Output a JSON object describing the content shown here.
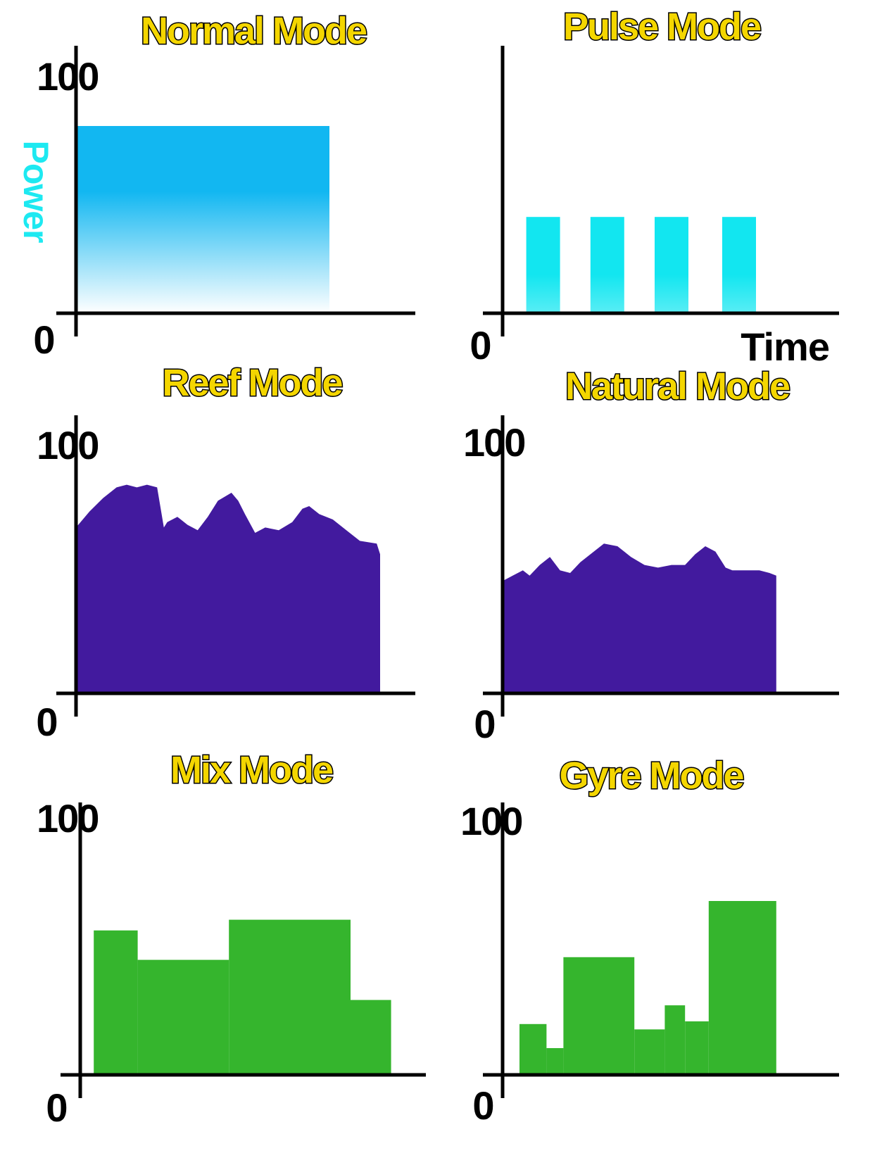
{
  "colors": {
    "title_fill": "#f4d600",
    "title_stroke": "#000000",
    "axis": "#000000",
    "normal": "#12b7f1",
    "pulse": "#12e6f0",
    "reef_natural": "#421a9e",
    "mix_gyre": "#35b52d",
    "ylabel": "#1de9f1"
  },
  "chart_data": [
    {
      "type": "area",
      "title": "Normal Mode",
      "ylabel": "Power",
      "xlabel": "",
      "ylim": [
        0,
        100
      ],
      "yticks": [
        "0",
        "100"
      ],
      "x": [
        0,
        75
      ],
      "y": [
        70,
        70
      ],
      "fill": "gradient-fade"
    },
    {
      "type": "bar",
      "title": "Pulse Mode",
      "ylabel": "",
      "xlabel": "Time",
      "ylim": [
        0,
        100
      ],
      "yticks": [
        "0"
      ],
      "bars": [
        {
          "x0": 7,
          "x1": 17,
          "value": 36
        },
        {
          "x0": 26,
          "x1": 36,
          "value": 36
        },
        {
          "x0": 45,
          "x1": 55,
          "value": 36
        },
        {
          "x0": 65,
          "x1": 75,
          "value": 36
        }
      ]
    },
    {
      "type": "area",
      "title": "Reef Mode",
      "ylabel": "",
      "xlabel": "",
      "ylim": [
        0,
        100
      ],
      "yticks": [
        "0",
        "100"
      ],
      "x": [
        0,
        4,
        8,
        12,
        15,
        18,
        21,
        24,
        26,
        27,
        30,
        33,
        36,
        39,
        42,
        46,
        48,
        50,
        53,
        56,
        60,
        64,
        67,
        69,
        72,
        76,
        80,
        84,
        89,
        90
      ],
      "y": [
        62,
        68,
        73,
        77,
        78,
        77,
        78,
        77,
        62,
        64,
        66,
        63,
        61,
        66,
        72,
        75,
        72,
        67,
        60,
        62,
        61,
        64,
        69,
        70,
        67,
        65,
        61,
        57,
        56,
        52
      ]
    },
    {
      "type": "area",
      "title": "Natural Mode",
      "ylabel": "",
      "xlabel": "",
      "ylim": [
        0,
        100
      ],
      "yticks": [
        "0",
        "100"
      ],
      "x": [
        0,
        3,
        6,
        8,
        11,
        14,
        17,
        20,
        23,
        26,
        30,
        34,
        38,
        42,
        46,
        50,
        54,
        57,
        60,
        63,
        66,
        68,
        70,
        72,
        74,
        76,
        79,
        81
      ],
      "y": [
        42,
        44,
        46,
        44,
        48,
        51,
        46,
        45,
        49,
        52,
        56,
        55,
        51,
        48,
        47,
        48,
        48,
        52,
        55,
        53,
        47,
        46,
        46,
        46,
        46,
        46,
        45,
        44
      ]
    },
    {
      "type": "bar",
      "title": "Mix Mode",
      "ylabel": "",
      "xlabel": "",
      "ylim": [
        0,
        100
      ],
      "yticks": [
        "0",
        "100"
      ],
      "bars": [
        {
          "x0": 4,
          "x1": 17,
          "value": 54
        },
        {
          "x0": 17,
          "x1": 44,
          "value": 43
        },
        {
          "x0": 44,
          "x1": 80,
          "value": 58
        },
        {
          "x0": 80,
          "x1": 92,
          "value": 28
        }
      ]
    },
    {
      "type": "bar",
      "title": "Gyre Mode",
      "ylabel": "",
      "xlabel": "",
      "ylim": [
        0,
        100
      ],
      "yticks": [
        "0",
        "100"
      ],
      "bars": [
        {
          "x0": 5,
          "x1": 13,
          "value": 19
        },
        {
          "x0": 13,
          "x1": 18,
          "value": 10
        },
        {
          "x0": 18,
          "x1": 39,
          "value": 44
        },
        {
          "x0": 39,
          "x1": 48,
          "value": 17
        },
        {
          "x0": 48,
          "x1": 54,
          "value": 26
        },
        {
          "x0": 54,
          "x1": 61,
          "value": 20
        },
        {
          "x0": 61,
          "x1": 81,
          "value": 65
        }
      ]
    }
  ]
}
